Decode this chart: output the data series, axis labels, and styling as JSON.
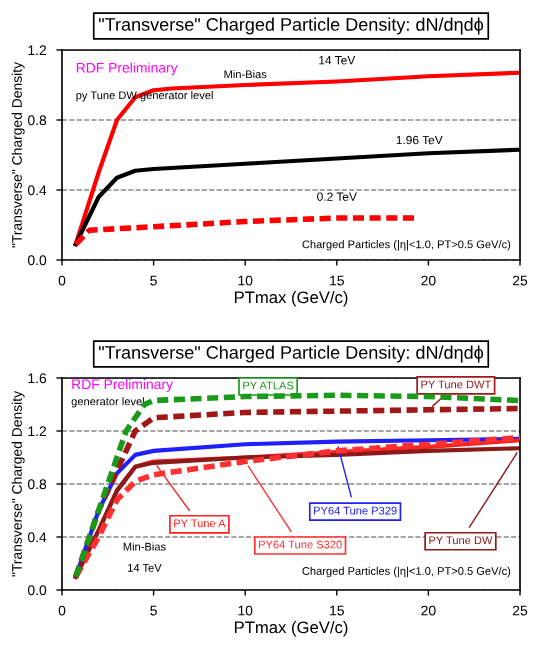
{
  "chart_data": [
    {
      "type": "line",
      "title": "\"Transverse\" Charged Particle Density: dN/dηdϕ",
      "xlabel": "PTmax (GeV/c)",
      "ylabel": "\"Transverse\" Charged Density",
      "xlim": [
        0,
        25
      ],
      "xticks": [
        0,
        5,
        10,
        15,
        20,
        25
      ],
      "ylim": [
        0,
        1.2
      ],
      "yticks": [
        {
          "value": 0,
          "label": "0.0"
        },
        {
          "value": 0.4,
          "label": "0.4"
        },
        {
          "value": 0.8,
          "label": "0.8"
        },
        {
          "value": 1.2,
          "label": "1.2"
        }
      ],
      "grid": "y",
      "legend": false,
      "annotations": [
        "RDF Preliminary",
        "py Tune DW generator level",
        "Min-Bias",
        "Charged Particles (|η|<1.0, PT>0.5 GeV/c)"
      ],
      "series": [
        {
          "name": "14 TeV",
          "color": "#ff0000",
          "line_style": "solid",
          "x": [
            0.75,
            2,
            3,
            4,
            5,
            6,
            10,
            15,
            20,
            25
          ],
          "values": [
            0.09,
            0.5,
            0.8,
            0.93,
            0.97,
            0.98,
            1.0,
            1.02,
            1.05,
            1.07
          ]
        },
        {
          "name": "1.96 TeV",
          "color": "#000000",
          "line_style": "solid",
          "x": [
            0.75,
            2,
            3,
            4,
            5,
            10,
            15,
            20,
            25
          ],
          "values": [
            0.09,
            0.36,
            0.47,
            0.51,
            0.52,
            0.55,
            0.58,
            0.61,
            0.63
          ]
        },
        {
          "name": "0.2 TeV",
          "color": "#ff0000",
          "line_style": "dashed",
          "x": [
            0.75,
            1.5,
            5,
            10,
            15,
            19.5
          ],
          "values": [
            0.09,
            0.17,
            0.19,
            0.22,
            0.24,
            0.24
          ]
        }
      ]
    },
    {
      "type": "line",
      "title": "\"Transverse\" Charged Particle Density: dN/dηdϕ",
      "xlabel": "PTmax (GeV/c)",
      "ylabel": "\"Transverse\" Charged Density",
      "xlim": [
        0,
        25
      ],
      "xticks": [
        0,
        5,
        10,
        15,
        20,
        25
      ],
      "ylim": [
        0,
        1.6
      ],
      "yticks": [
        {
          "value": 0,
          "label": "0.0"
        },
        {
          "value": 0.4,
          "label": "0.4"
        },
        {
          "value": 0.8,
          "label": "0.8"
        },
        {
          "value": 1.2,
          "label": "1.2"
        },
        {
          "value": 1.6,
          "label": "1.6"
        }
      ],
      "grid": "y",
      "legend": false,
      "annotations": [
        "RDF Preliminary",
        "generator level",
        "Min-Bias",
        "14 TeV",
        "Charged Particles (|η|<1.0, PT>0.5 GeV/c)"
      ],
      "series": [
        {
          "name": "PY ATLAS",
          "color": "#1a9a1a",
          "line_style": "dashed",
          "x": [
            0.75,
            1.5,
            2.5,
            3.5,
            4.5,
            5,
            10,
            15,
            20,
            25
          ],
          "values": [
            0.1,
            0.4,
            0.8,
            1.2,
            1.4,
            1.43,
            1.46,
            1.47,
            1.46,
            1.43
          ]
        },
        {
          "name": "PY Tune DWT",
          "color": "#a01818",
          "line_style": "dashed",
          "x": [
            0.75,
            2,
            3,
            4,
            5,
            10,
            15,
            20,
            25
          ],
          "values": [
            0.1,
            0.6,
            0.9,
            1.2,
            1.3,
            1.34,
            1.35,
            1.36,
            1.37
          ]
        },
        {
          "name": "PY64 Tune P329",
          "color": "#1f1fff",
          "line_style": "solid",
          "x": [
            0.75,
            2,
            3,
            4,
            5,
            10,
            15,
            20,
            25
          ],
          "values": [
            0.1,
            0.6,
            0.88,
            1.02,
            1.05,
            1.1,
            1.12,
            1.13,
            1.14
          ]
        },
        {
          "name": "PY Tune A",
          "color": "#ff2020",
          "line_style": "solid",
          "x": [
            0.75,
            2,
            3,
            4,
            5,
            10,
            15,
            20,
            25
          ],
          "values": [
            0.1,
            0.45,
            0.75,
            0.93,
            0.97,
            1.0,
            1.04,
            1.08,
            1.13
          ]
        },
        {
          "name": "PY64 Tune S320",
          "color": "#ff3030",
          "line_style": "dashed",
          "x": [
            0.75,
            2,
            3,
            4,
            5,
            10,
            15,
            20,
            25
          ],
          "values": [
            0.1,
            0.4,
            0.68,
            0.82,
            0.87,
            0.97,
            1.05,
            1.1,
            1.15
          ]
        },
        {
          "name": "PY Tune DW",
          "color": "#8b1a1a",
          "line_style": "solid",
          "x": [
            0.75,
            2,
            3,
            4,
            5,
            10,
            15,
            20,
            25
          ],
          "values": [
            0.1,
            0.45,
            0.75,
            0.93,
            0.96,
            1.0,
            1.02,
            1.05,
            1.07
          ]
        }
      ]
    }
  ]
}
